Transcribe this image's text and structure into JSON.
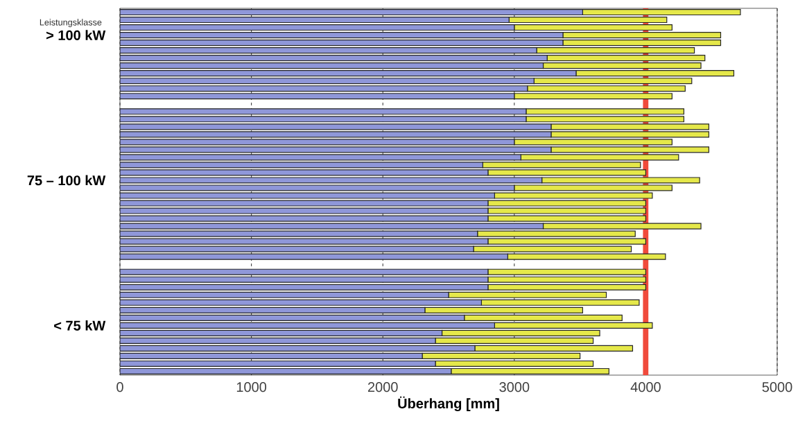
{
  "chart_data": {
    "type": "bar",
    "orientation": "horizontal",
    "stacked": true,
    "ylabel": "Leistungsklasse",
    "xlabel": "Überhang [mm]",
    "categories": [
      null,
      null,
      null,
      "> 100 kW",
      null,
      null,
      null,
      null,
      null,
      null,
      null,
      null,
      null,
      null,
      null,
      null,
      null,
      null,
      null,
      null,
      null,
      null,
      "75 – 100 kW",
      null,
      null,
      null,
      null,
      null,
      null,
      null,
      null,
      null,
      null,
      null,
      null,
      null,
      null,
      null,
      null,
      null,
      null,
      "< 75 kW",
      null,
      null,
      null,
      null,
      null,
      null
    ],
    "series": [
      {
        "color": "#8f97d9",
        "values": [
          3520,
          2960,
          3000,
          3370,
          3370,
          3170,
          3250,
          3220,
          3470,
          3150,
          3100,
          3000,
          null,
          3090,
          3090,
          3280,
          3280,
          3000,
          3280,
          3050,
          2760,
          2800,
          3210,
          3000,
          2850,
          2800,
          2800,
          2800,
          3220,
          2720,
          2800,
          2690,
          2950,
          null,
          2800,
          2800,
          2800,
          2500,
          2750,
          2320,
          2620,
          2850,
          2450,
          2400,
          2700,
          2300,
          2400,
          2520
        ]
      },
      {
        "color": "#e5e84a",
        "values": [
          1200,
          1200,
          1200,
          1200,
          1200,
          1200,
          1200,
          1200,
          1200,
          1200,
          1200,
          1200,
          null,
          1200,
          1200,
          1200,
          1200,
          1200,
          1200,
          1200,
          1200,
          1200,
          1200,
          1200,
          1200,
          1200,
          1200,
          1200,
          1200,
          1200,
          1200,
          1200,
          1200,
          null,
          1200,
          1200,
          1200,
          1200,
          1200,
          1200,
          1200,
          1200,
          1200,
          1200,
          1200,
          1200,
          1200,
          1200
        ]
      }
    ],
    "xlim": [
      0,
      5000
    ],
    "xticks": [
      0,
      1000,
      2000,
      3000,
      4000,
      5000
    ],
    "grid": "x",
    "ref_lines": [
      {
        "axis": "x",
        "value": 4000,
        "color": "#f04a3c"
      }
    ]
  }
}
